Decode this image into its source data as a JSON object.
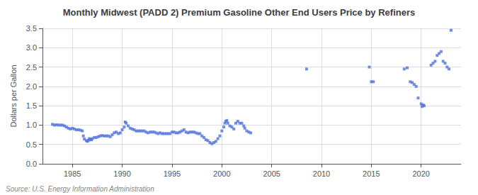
{
  "chart_data": {
    "type": "scatter",
    "title": "Monthly Midwest (PADD 2) Premium Gasoline Other End Users Price by Refiners",
    "ylabel": "Dollars per Gallon",
    "annotation": "Source: U.S. Energy Information Administration",
    "marker": "square",
    "grid": true,
    "xlim": [
      1982,
      2024
    ],
    "ylim": [
      0.0,
      3.5
    ],
    "xticks": [
      1985,
      1990,
      1995,
      2000,
      2005,
      2010,
      2015,
      2020
    ],
    "yticks": [
      {
        "value": 0.0,
        "label": "0.0"
      },
      0.5,
      {
        "value": 1.0,
        "label": "1.0"
      },
      1.5,
      {
        "value": 2.0,
        "label": "2.0"
      },
      2.5,
      {
        "value": 3.0,
        "label": "3.0"
      },
      3.5
    ],
    "x": [
      1983.0,
      1983.2,
      1983.4,
      1983.6,
      1983.8,
      1984.0,
      1984.2,
      1984.4,
      1984.6,
      1984.8,
      1985.0,
      1985.2,
      1985.4,
      1985.6,
      1985.8,
      1986.0,
      1986.1,
      1986.2,
      1986.4,
      1986.5,
      1986.6,
      1986.7,
      1986.8,
      1986.9,
      1987.0,
      1987.2,
      1987.4,
      1987.6,
      1987.8,
      1988.0,
      1988.2,
      1988.4,
      1988.6,
      1988.8,
      1989.0,
      1989.2,
      1989.4,
      1989.6,
      1989.8,
      1990.0,
      1990.2,
      1990.3,
      1990.4,
      1990.6,
      1990.8,
      1991.0,
      1991.2,
      1991.4,
      1991.6,
      1991.8,
      1992.0,
      1992.2,
      1992.4,
      1992.6,
      1992.8,
      1993.0,
      1993.2,
      1993.4,
      1993.6,
      1993.8,
      1994.0,
      1994.2,
      1994.4,
      1994.6,
      1994.8,
      1995.0,
      1995.2,
      1995.4,
      1995.6,
      1995.8,
      1996.0,
      1996.2,
      1996.4,
      1996.6,
      1996.8,
      1997.0,
      1997.2,
      1997.4,
      1997.6,
      1997.8,
      1998.0,
      1998.2,
      1998.4,
      1998.6,
      1998.8,
      1999.0,
      1999.2,
      1999.4,
      1999.6,
      1999.8,
      2000.0,
      2000.2,
      2000.3,
      2000.4,
      2000.5,
      2000.6,
      2000.8,
      2001.0,
      2001.2,
      2001.4,
      2001.6,
      2001.8,
      2002.0,
      2002.2,
      2002.3,
      2002.5,
      2002.7,
      2002.9,
      2008.5,
      2014.8,
      2015.0,
      2015.2,
      2018.3,
      2018.6,
      2018.9,
      2019.1,
      2019.3,
      2019.5,
      2019.7,
      2020.0,
      2020.1,
      2020.2,
      2020.3,
      2021.0,
      2021.2,
      2021.4,
      2021.6,
      2021.8,
      2022.0,
      2022.2,
      2022.4,
      2022.6,
      2022.8,
      2023.0
    ],
    "values": [
      1.02,
      1.0,
      1.01,
      1.0,
      1.0,
      1.0,
      0.98,
      0.95,
      0.92,
      0.9,
      0.92,
      0.9,
      0.88,
      0.88,
      0.87,
      0.85,
      0.72,
      0.64,
      0.6,
      0.58,
      0.6,
      0.65,
      0.63,
      0.62,
      0.65,
      0.68,
      0.68,
      0.7,
      0.72,
      0.73,
      0.72,
      0.72,
      0.72,
      0.7,
      0.75,
      0.8,
      0.82,
      0.78,
      0.8,
      0.88,
      0.95,
      1.08,
      1.05,
      0.98,
      0.92,
      0.9,
      0.88,
      0.85,
      0.85,
      0.85,
      0.85,
      0.85,
      0.82,
      0.8,
      0.82,
      0.82,
      0.82,
      0.8,
      0.78,
      0.8,
      0.78,
      0.78,
      0.78,
      0.78,
      0.78,
      0.82,
      0.82,
      0.8,
      0.8,
      0.82,
      0.85,
      0.88,
      0.82,
      0.8,
      0.82,
      0.82,
      0.82,
      0.8,
      0.78,
      0.78,
      0.72,
      0.68,
      0.62,
      0.6,
      0.55,
      0.52,
      0.55,
      0.58,
      0.65,
      0.72,
      0.85,
      0.95,
      1.05,
      1.1,
      1.12,
      1.05,
      0.98,
      0.95,
      0.9,
      1.05,
      1.1,
      1.05,
      1.05,
      0.98,
      0.92,
      0.85,
      0.82,
      0.8,
      2.45,
      2.5,
      2.12,
      2.12,
      2.45,
      2.48,
      2.12,
      2.1,
      2.05,
      2.0,
      1.7,
      1.55,
      1.48,
      1.52,
      1.5,
      2.55,
      2.6,
      2.65,
      2.8,
      2.85,
      2.9,
      2.65,
      2.6,
      2.5,
      2.45,
      3.45
    ]
  }
}
